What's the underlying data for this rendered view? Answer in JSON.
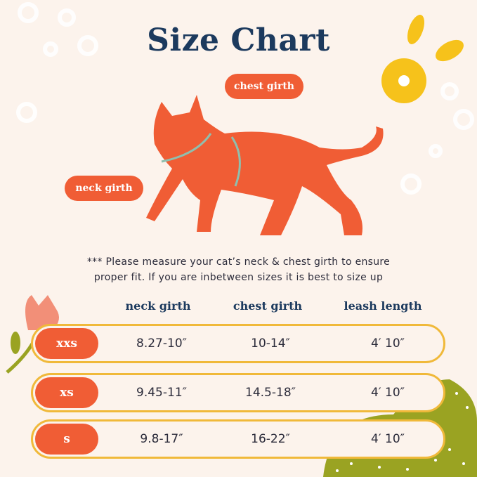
{
  "title": "Size Chart",
  "labels": {
    "chest": "chest girth",
    "neck": "neck girth"
  },
  "note": "*** Please measure your cat’s neck & chest girth to ensure proper fit. If you are inbetween sizes it is best to size up",
  "table": {
    "headers": [
      "neck girth",
      "chest girth",
      "leash length"
    ],
    "rows": [
      {
        "size": "XXS",
        "neck": "8.27-10″",
        "chest": "10-14″",
        "leash": "4′ 10″"
      },
      {
        "size": "XS",
        "neck": "9.45-11″",
        "chest": "14.5-18″",
        "leash": "4′ 10″"
      },
      {
        "size": "S",
        "neck": "9.8-17″",
        "chest": "16-22″",
        "leash": "4′ 10″"
      }
    ]
  },
  "colors": {
    "background": "#fcf3ec",
    "title": "#1c3a5e",
    "accent": "#f05d35",
    "row_border": "#f0b93a",
    "strap": "#8fbfae",
    "leaf": "#9aa322",
    "flower": "#f6c21b"
  }
}
